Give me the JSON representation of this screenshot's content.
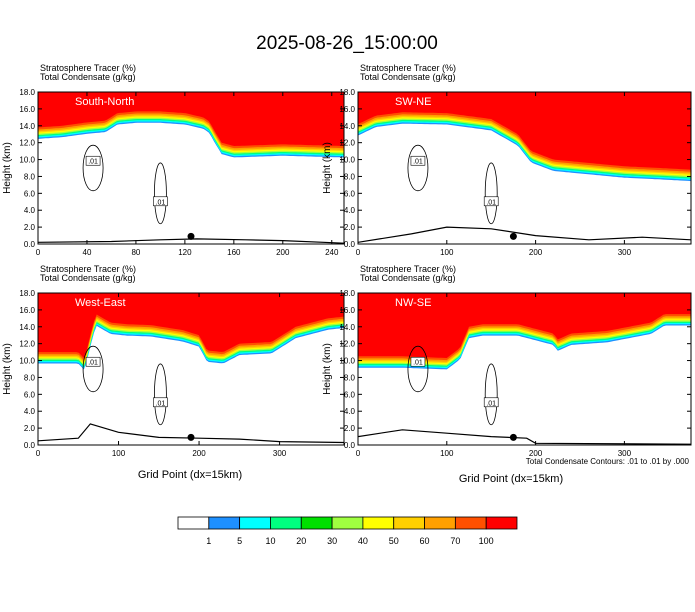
{
  "title": "2025-08-26_15:00:00",
  "panel_title_line1": "Stratosphere Tracer    (%)",
  "panel_title_line2": "Total Condensate    (g/kg)",
  "y_axis_label": "Height (km)",
  "x_axis_label": "Grid Point (dx=15km)",
  "contour_note": "Total Condensate Contours: .01 to .01 by .000",
  "contour_label": ".01",
  "colorbar": {
    "labels": [
      "1",
      "5",
      "10",
      "20",
      "30",
      "40",
      "50",
      "60",
      "70",
      "100"
    ],
    "colors": [
      "#ffffff",
      "#1e90ff",
      "#00ffff",
      "#00ff80",
      "#00e000",
      "#a0ff40",
      "#ffff00",
      "#ffd000",
      "#ffa000",
      "#ff5000",
      "#ff0000"
    ]
  },
  "chart_data": [
    {
      "type": "heatmap",
      "name": "South-North",
      "xlim": [
        0,
        250
      ],
      "ylim": [
        0,
        18
      ],
      "xticks": [
        "0",
        "40",
        "80",
        "120",
        "160",
        "200",
        "240"
      ],
      "yticks": [
        "0.0",
        "2.0",
        "4.0",
        "6.0",
        "8.0",
        "10.0",
        "12.0",
        "14.0",
        "16.0",
        "18.0"
      ],
      "tracer_top": [
        [
          0,
          13.8
        ],
        [
          20,
          14.0
        ],
        [
          40,
          14.4
        ],
        [
          55,
          14.6
        ],
        [
          65,
          15.5
        ],
        [
          80,
          15.7
        ],
        [
          100,
          15.7
        ],
        [
          120,
          15.5
        ],
        [
          135,
          15.0
        ],
        [
          140,
          14.5
        ],
        [
          145,
          13.2
        ],
        [
          150,
          12.0
        ],
        [
          160,
          11.6
        ],
        [
          200,
          11.8
        ],
        [
          250,
          11.6
        ]
      ],
      "terrain": [
        [
          0,
          0.2
        ],
        [
          60,
          0.3
        ],
        [
          100,
          0.5
        ],
        [
          130,
          0.6
        ],
        [
          170,
          0.5
        ],
        [
          200,
          0.4
        ],
        [
          250,
          0.1
        ]
      ],
      "marker_x": 125
    },
    {
      "type": "heatmap",
      "name": "SW-NE",
      "xlim": [
        0,
        375
      ],
      "ylim": [
        0,
        18
      ],
      "xticks": [
        "0",
        "100",
        "200",
        "300"
      ],
      "yticks": [
        "0.0",
        "2.0",
        "4.0",
        "6.0",
        "8.0",
        "10.0",
        "12.0",
        "14.0",
        "16.0",
        "18.0"
      ],
      "tracer_top": [
        [
          0,
          14.2
        ],
        [
          20,
          15.2
        ],
        [
          50,
          15.6
        ],
        [
          100,
          15.5
        ],
        [
          150,
          14.8
        ],
        [
          180,
          13.0
        ],
        [
          195,
          11.0
        ],
        [
          220,
          10.0
        ],
        [
          260,
          9.6
        ],
        [
          300,
          9.2
        ],
        [
          340,
          9.0
        ],
        [
          375,
          8.8
        ]
      ],
      "terrain": [
        [
          0,
          0.2
        ],
        [
          60,
          1.2
        ],
        [
          100,
          2.0
        ],
        [
          150,
          1.8
        ],
        [
          200,
          1.0
        ],
        [
          260,
          0.5
        ],
        [
          320,
          0.8
        ],
        [
          375,
          0.5
        ]
      ],
      "marker_x": 175
    },
    {
      "type": "heatmap",
      "name": "West-East",
      "xlim": [
        0,
        380
      ],
      "ylim": [
        0,
        18
      ],
      "xticks": [
        "0",
        "100",
        "200",
        "300"
      ],
      "yticks": [
        "0.0",
        "2.0",
        "4.0",
        "6.0",
        "8.0",
        "10.0",
        "12.0",
        "14.0",
        "16.0",
        "18.0"
      ],
      "tracer_top": [
        [
          0,
          11.0
        ],
        [
          50,
          11.0
        ],
        [
          58,
          10.2
        ],
        [
          65,
          13.0
        ],
        [
          72,
          15.5
        ],
        [
          90,
          14.5
        ],
        [
          110,
          14.3
        ],
        [
          140,
          14.2
        ],
        [
          180,
          13.6
        ],
        [
          200,
          13.0
        ],
        [
          210,
          11.2
        ],
        [
          230,
          11.0
        ],
        [
          250,
          12.0
        ],
        [
          290,
          12.2
        ],
        [
          320,
          14.0
        ],
        [
          360,
          15.0
        ],
        [
          380,
          15.2
        ]
      ],
      "terrain": [
        [
          0,
          0.5
        ],
        [
          50,
          0.8
        ],
        [
          65,
          2.5
        ],
        [
          100,
          1.5
        ],
        [
          150,
          0.9
        ],
        [
          200,
          0.8
        ],
        [
          250,
          0.7
        ],
        [
          300,
          0.4
        ],
        [
          380,
          0.3
        ]
      ],
      "marker_x": 190
    },
    {
      "type": "heatmap",
      "name": "NW-SE",
      "xlim": [
        0,
        375
      ],
      "ylim": [
        0,
        18
      ],
      "xticks": [
        "0",
        "100",
        "200",
        "300"
      ],
      "yticks": [
        "0.0",
        "2.0",
        "4.0",
        "6.0",
        "8.0",
        "10.0",
        "12.0",
        "14.0",
        "16.0",
        "18.0"
      ],
      "tracer_top": [
        [
          0,
          10.5
        ],
        [
          50,
          10.5
        ],
        [
          100,
          10.3
        ],
        [
          115,
          11.5
        ],
        [
          125,
          14.0
        ],
        [
          140,
          14.3
        ],
        [
          180,
          14.3
        ],
        [
          220,
          13.2
        ],
        [
          225,
          12.5
        ],
        [
          240,
          13.2
        ],
        [
          280,
          13.5
        ],
        [
          330,
          14.5
        ],
        [
          345,
          15.5
        ],
        [
          375,
          15.5
        ]
      ],
      "terrain": [
        [
          0,
          1.0
        ],
        [
          50,
          1.8
        ],
        [
          100,
          1.4
        ],
        [
          150,
          1.0
        ],
        [
          190,
          0.8
        ],
        [
          200,
          0.2
        ],
        [
          375,
          0.1
        ]
      ],
      "marker_x": 175
    }
  ]
}
